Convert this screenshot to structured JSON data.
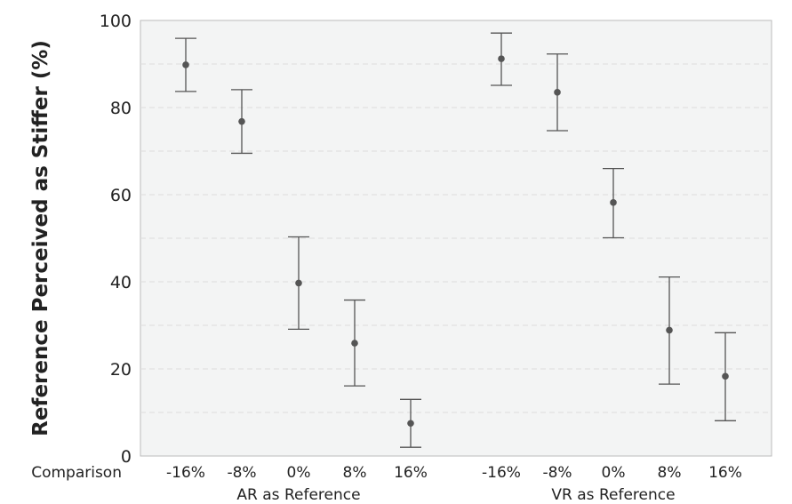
{
  "chart_data": {
    "type": "scatter",
    "ylabel": "Reference Perceived as Stiffer (%)",
    "ylim": [
      0,
      100
    ],
    "yticks": [
      0,
      20,
      40,
      60,
      80,
      100
    ],
    "grid": "dashed horizontal at every 10",
    "x_row_label": "Comparison",
    "groups": [
      {
        "label": "AR as Reference",
        "categories": [
          "-16%",
          "-8%",
          "0%",
          "8%",
          "16%"
        ],
        "values": [
          89.8,
          76.8,
          39.7,
          25.9,
          7.5
        ],
        "upper": [
          95.9,
          84.1,
          50.3,
          35.8,
          13.0
        ],
        "lower": [
          83.7,
          69.5,
          29.1,
          16.1,
          2.0
        ]
      },
      {
        "label": "VR as Reference",
        "categories": [
          "-16%",
          "-8%",
          "0%",
          "8%",
          "16%"
        ],
        "values": [
          91.2,
          83.5,
          58.2,
          28.9,
          18.3
        ],
        "upper": [
          97.1,
          92.3,
          66.0,
          41.1,
          28.3
        ],
        "lower": [
          85.1,
          74.7,
          50.1,
          16.5,
          8.1
        ]
      }
    ],
    "colors": {
      "plot_bg": "#f3f4f4",
      "marker": "#555555",
      "grid": "#dddddd"
    }
  }
}
